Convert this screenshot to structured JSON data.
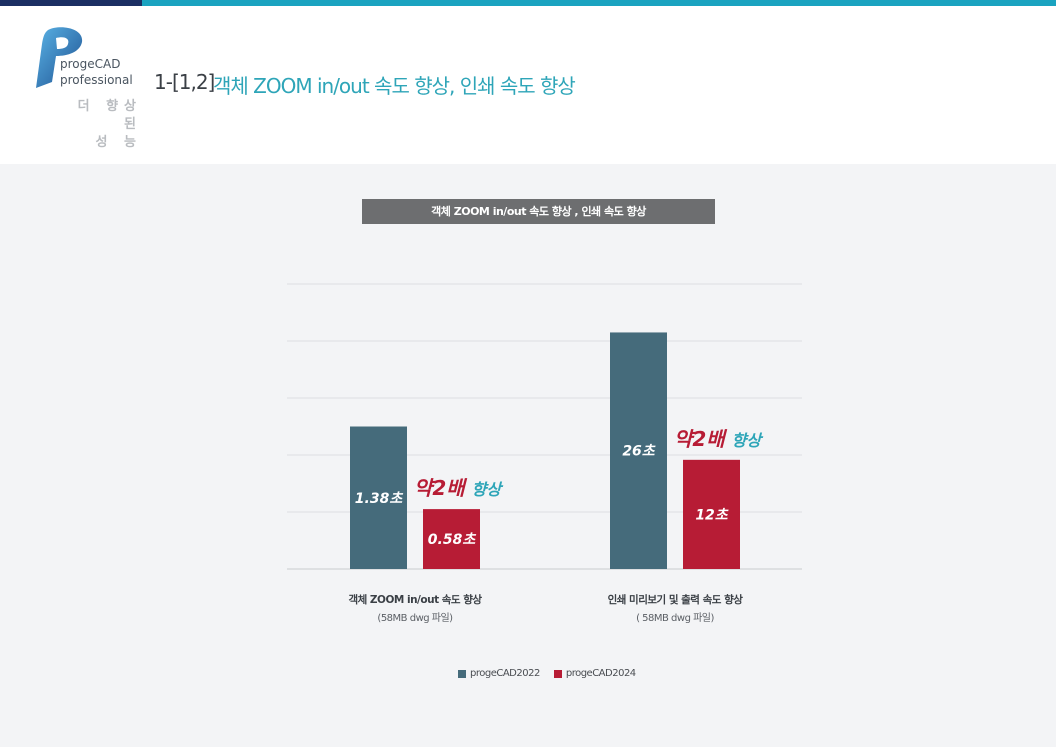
{
  "header": {
    "logo_line1": "progeCAD",
    "logo_line2": "professional",
    "tagline_line1": "더 향상된",
    "tagline_line2": "성 능",
    "section_number": "1-[1,2]",
    "section_title": "객체 ZOOM in/out 속도 향상, 인쇄 속도 향상"
  },
  "colors": {
    "brand_dark": "#1b2f63",
    "brand_accent": "#1aa3c0",
    "series_2022": "#456b7b",
    "series_2024": "#b71c35",
    "highlight_red": "#b71c35",
    "highlight_teal": "#2ea5b8"
  },
  "chart_data": {
    "type": "bar",
    "title": "객체 ZOOM in/out 속도 향상 , 인쇄 속도 향상",
    "categories": [
      {
        "label": "객체 ZOOM in/out 속도 향상",
        "sublabel": "(58MB dwg 파일)"
      },
      {
        "label": "인쇄 미리보기 및 출력 속도 향상",
        "sublabel": "( 58MB dwg 파일)"
      }
    ],
    "series": [
      {
        "name": "progeCAD2022",
        "values": [
          1.38,
          26
        ],
        "labels": [
          "1.38초",
          "26초"
        ]
      },
      {
        "name": "progeCAD2024",
        "values": [
          0.58,
          12
        ],
        "labels": [
          "0.58초",
          "12초"
        ]
      }
    ],
    "annotations": [
      {
        "strong": "약2배",
        "light": "향상"
      },
      {
        "strong": "약2배",
        "light": "향상"
      }
    ],
    "gridlines": 6,
    "legend_position": "bottom",
    "ylabel": "",
    "xlabel": ""
  }
}
